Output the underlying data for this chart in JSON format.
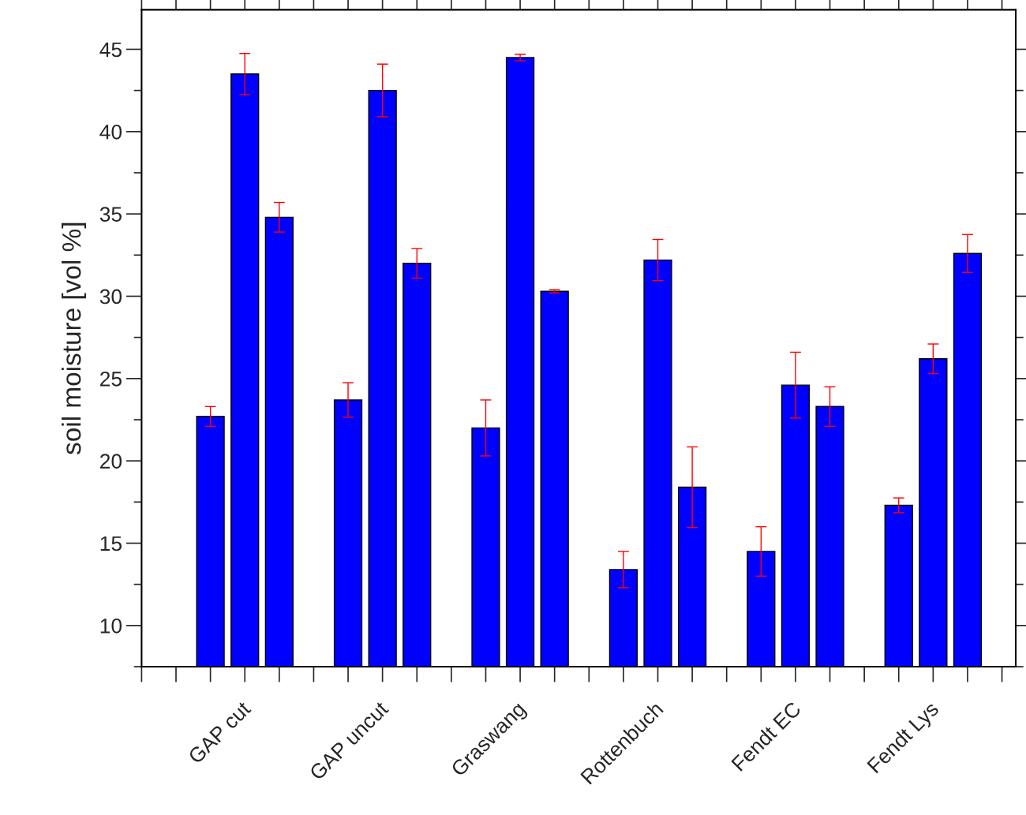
{
  "chart_data": {
    "type": "bar",
    "ylabel": "soil moisture [vol %]",
    "categories": [
      null,
      null,
      null,
      "GAP cut",
      null,
      null,
      null,
      "GAP uncut",
      null,
      null,
      null,
      "Graswang",
      null,
      null,
      null,
      "Rottenbuch",
      null,
      null,
      null,
      "Fendt EC",
      null,
      null,
      null,
      "Fendt Lys",
      null,
      null
    ],
    "values": [
      null,
      null,
      22.7,
      43.5,
      34.8,
      null,
      23.7,
      42.5,
      32.0,
      null,
      22.0,
      44.5,
      30.3,
      null,
      13.4,
      32.2,
      18.4,
      null,
      14.5,
      24.6,
      23.3,
      null,
      17.3,
      26.2,
      32.6,
      null
    ],
    "errors": [
      null,
      null,
      0.6,
      1.25,
      0.9,
      null,
      1.05,
      1.6,
      0.9,
      null,
      1.7,
      0.2,
      0.1,
      null,
      1.1,
      1.25,
      2.45,
      null,
      1.5,
      2.0,
      1.2,
      null,
      0.45,
      0.9,
      1.15,
      null
    ],
    "color": "#0000ff",
    "ylim": [
      7.5,
      47.4
    ],
    "yticks": [
      10,
      15,
      20,
      25,
      30,
      35,
      40,
      45
    ],
    "grid": false
  }
}
